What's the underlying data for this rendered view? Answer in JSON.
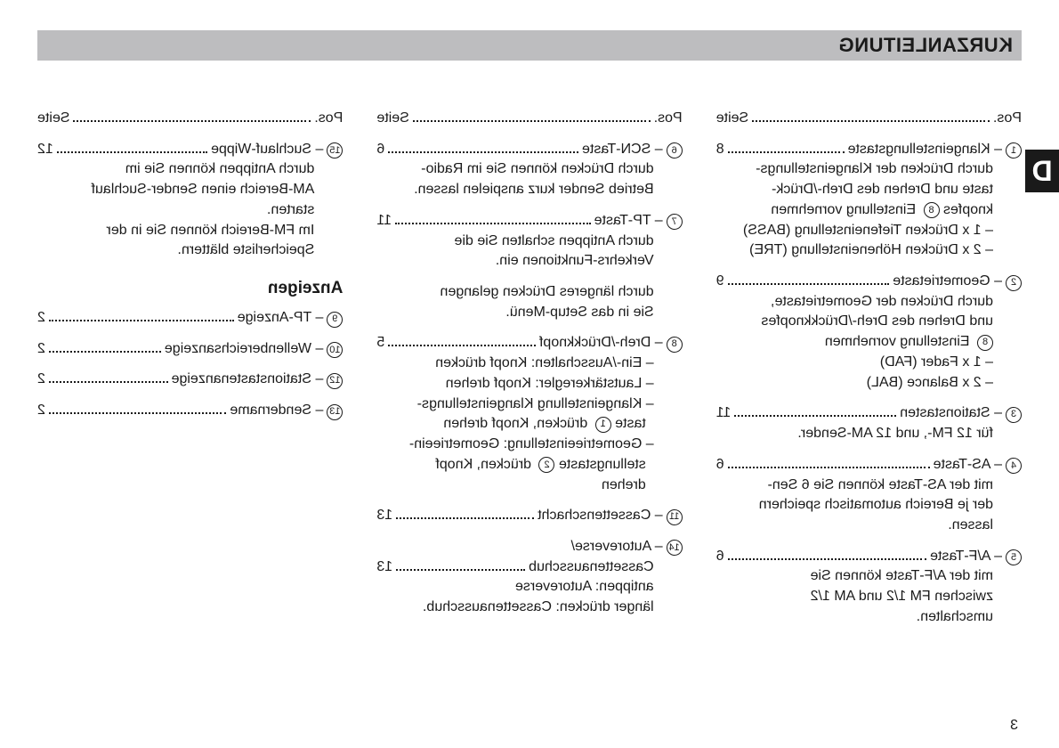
{
  "title": "KURZANLEITUNG",
  "tab_letter": "D",
  "page_number": "3",
  "pos_label": "Pos.",
  "pos_value": "Seite",
  "anzeigen_heading": "Anzeigen",
  "col1": [
    {
      "num": "1",
      "title": "Klangeinstellungstaste",
      "page": "8",
      "lines": [
        "durch Drücken der Klangeinstellungs-",
        "taste und Drehen des Dreh-/Drück-",
        "knopfes <8> Einstellung vornehmen",
        "– 1 x Drücken Tiefeneinstellung (BASS)",
        "– 2 x Drücken Höheneinstellung (TRE)"
      ]
    },
    {
      "num": "2",
      "title": "Geometrietaste",
      "page": "9",
      "lines": [
        "durch Drücken der Geometrietaste,",
        "und Drehen des Dreh-/Drückknopfes",
        "<8> Einstellung vornehmen",
        "– 1 x Fader (FAD)",
        "– 2 x Balance (BAL)"
      ]
    },
    {
      "num": "3",
      "title": "Stationstasten",
      "page": "11",
      "lines": [
        "für 12 FM-, und 12 AM-Sender."
      ]
    },
    {
      "num": "4",
      "title": "AS-Taste",
      "page": "6",
      "lines": [
        "mit der AS-Taste können Sie 6 Sen-",
        "der je Bereich automatisch speichern",
        "lassen."
      ]
    },
    {
      "num": "5",
      "title": "A/F-Taste",
      "page": "6",
      "lines": [
        "mit der A/F-Taste können Sie",
        "zwischen FM 1/2 und AM 1/2",
        "umschalten."
      ]
    }
  ],
  "col2": [
    {
      "num": "6",
      "title": "SCN-Taste",
      "page": "6",
      "lines": [
        "durch Drücken können Sie im Radio-",
        "Betrieb Sender kurz anspielen lassen."
      ]
    },
    {
      "num": "7",
      "title": "TP-Taste",
      "page": "11",
      "lines": [
        "durch Antippen schalten Sie die",
        "Verkehrs-Funktionen ein."
      ],
      "extra": [
        "durch längeres Drücken gelangen",
        "Sie in das Setup-Menü."
      ]
    },
    {
      "num": "8",
      "title": "Dreh-/Drückknopf",
      "page": "5",
      "lines": [
        "– Ein-/Ausschalten: Knopf drücken",
        "– Lautstärkeregler: Knopf drehen",
        "– Klangeinstellung Klangeinstellungs-",
        "  taste <1> drücken, Knopf drehen",
        "– Geometrieeinstellung: Geometrieein-",
        "  stellungstaste <2> drücken, Knopf",
        "  drehen"
      ]
    },
    {
      "num": "11",
      "title": "Cassettenschacht",
      "page": "13",
      "lines": []
    },
    {
      "num": "14",
      "title": "Autoreverse/",
      "title2": "Cassettenausschub",
      "page": "13",
      "lines": [
        "antippen: Autoreverse",
        "länger drücken: Cassettenausschub."
      ]
    }
  ],
  "col3": [
    {
      "num": "15",
      "title": "Suchlauf-Wippe",
      "page": "12",
      "lines": [
        "durch Antippen können Sie im",
        "AM-Bereich einen Sender-Suchlauf",
        "starten.",
        "Im FM-Bereich  können Sie in der",
        "Speicherliste blättern."
      ]
    }
  ],
  "anzeigen": [
    {
      "num": "9",
      "title": "TP-Anzeige",
      "page": "2"
    },
    {
      "num": "10",
      "title": "Wellenbereichsanzeige",
      "page": "2"
    },
    {
      "num": "12",
      "title": "Stationstastenanzeige",
      "page": "2"
    },
    {
      "num": "13",
      "title": "Sendername",
      "page": "2"
    }
  ]
}
